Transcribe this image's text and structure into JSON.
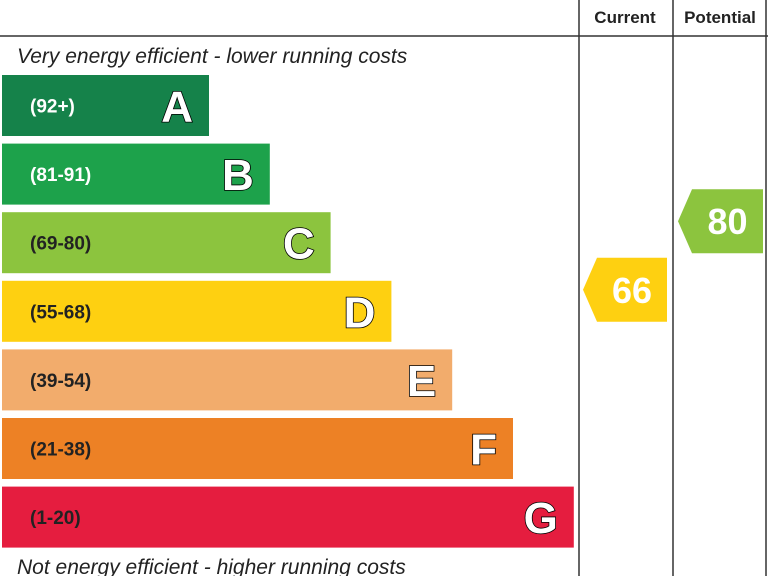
{
  "chart_data": {
    "type": "bar",
    "header": {
      "current": "Current",
      "potential": "Potential"
    },
    "top_caption": "Very energy efficient - lower running costs",
    "bottom_caption": "Not energy efficient - higher running costs",
    "bands": [
      {
        "letter": "A",
        "range": "(92+)",
        "color": "#15824a",
        "range_color": "#ffffff"
      },
      {
        "letter": "B",
        "range": "(81-91)",
        "color": "#1da24b",
        "range_color": "#ffffff"
      },
      {
        "letter": "C",
        "range": "(69-80)",
        "color": "#8cc43e",
        "range_color": "#222222"
      },
      {
        "letter": "D",
        "range": "(55-68)",
        "color": "#fed011",
        "range_color": "#222222"
      },
      {
        "letter": "E",
        "range": "(39-54)",
        "color": "#f2ac6c",
        "range_color": "#222222"
      },
      {
        "letter": "F",
        "range": "(21-38)",
        "color": "#ed8125",
        "range_color": "#222222"
      },
      {
        "letter": "G",
        "range": "(1-20)",
        "color": "#e51d3f",
        "range_color": "#222222"
      }
    ],
    "current": {
      "value": 66,
      "label": "66",
      "band": "D",
      "color": "#fed011"
    },
    "potential": {
      "value": 80,
      "label": "80",
      "band": "C",
      "color": "#8cc43e"
    }
  }
}
